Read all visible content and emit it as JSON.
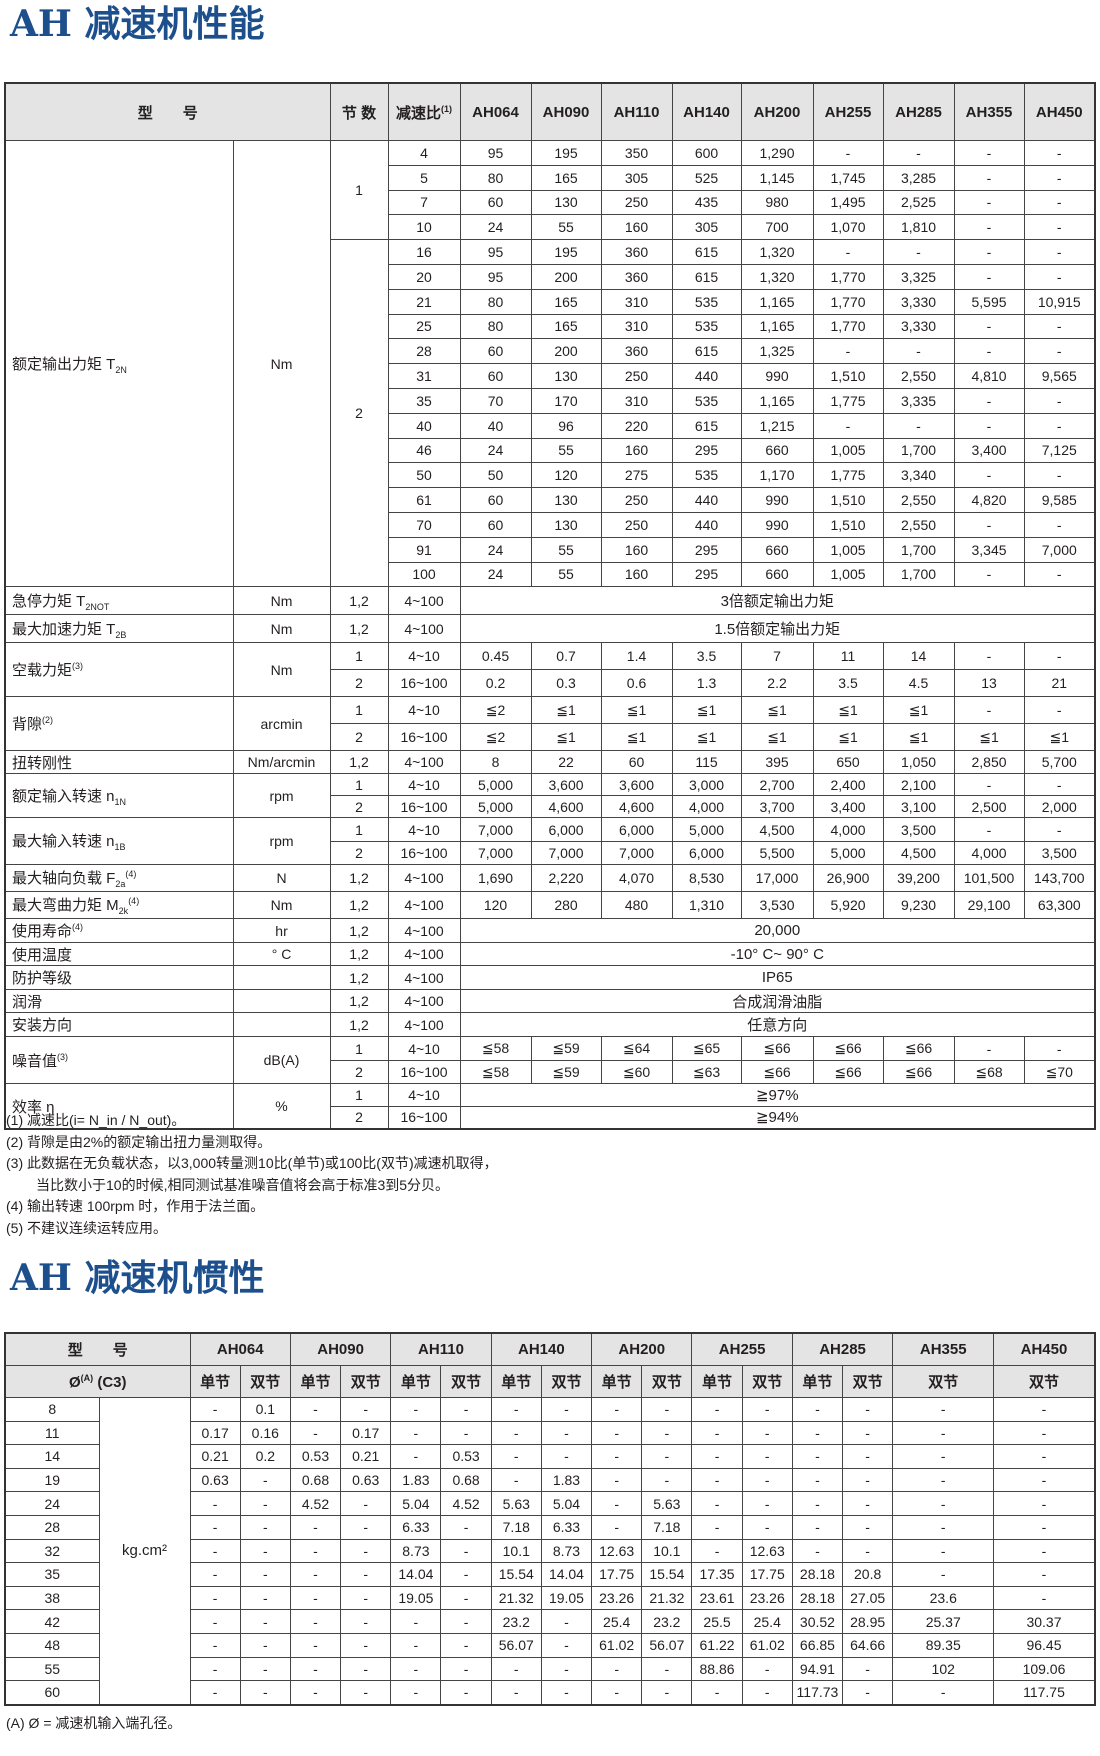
{
  "perf": {
    "title": "AH 减速机性能",
    "header": {
      "model": "型　　号",
      "stage": "节 数",
      "ratio": "减速比",
      "ratio_note": "(1)",
      "models": [
        "AH064",
        "AH090",
        "AH110",
        "AH140",
        "AH200",
        "AH255",
        "AH285",
        "AH355",
        "AH450"
      ]
    },
    "groups": [
      {
        "label": "额定输出力矩 T",
        "sub": "2N",
        "sup": "",
        "unit": "Nm",
        "lines": [
          {
            "stage": "1",
            "ratio": "4",
            "values": [
              "95",
              "195",
              "350",
              "600",
              "1,290",
              "-",
              "-",
              "-",
              "-"
            ]
          },
          {
            "stage": "1",
            "ratio": "5",
            "values": [
              "80",
              "165",
              "305",
              "525",
              "1,145",
              "1,745",
              "3,285",
              "-",
              "-"
            ]
          },
          {
            "stage": "1",
            "ratio": "7",
            "values": [
              "60",
              "130",
              "250",
              "435",
              "980",
              "1,495",
              "2,525",
              "-",
              "-"
            ]
          },
          {
            "stage": "1",
            "ratio": "10",
            "values": [
              "24",
              "55",
              "160",
              "305",
              "700",
              "1,070",
              "1,810",
              "-",
              "-"
            ]
          },
          {
            "stage": "2",
            "ratio": "16",
            "values": [
              "95",
              "195",
              "360",
              "615",
              "1,320",
              "-",
              "-",
              "-",
              "-"
            ]
          },
          {
            "stage": "2",
            "ratio": "20",
            "values": [
              "95",
              "200",
              "360",
              "615",
              "1,320",
              "1,770",
              "3,325",
              "-",
              "-"
            ]
          },
          {
            "stage": "2",
            "ratio": "21",
            "values": [
              "80",
              "165",
              "310",
              "535",
              "1,165",
              "1,770",
              "3,330",
              "5,595",
              "10,915"
            ]
          },
          {
            "stage": "2",
            "ratio": "25",
            "values": [
              "80",
              "165",
              "310",
              "535",
              "1,165",
              "1,770",
              "3,330",
              "-",
              "-"
            ]
          },
          {
            "stage": "2",
            "ratio": "28",
            "values": [
              "60",
              "200",
              "360",
              "615",
              "1,325",
              "-",
              "-",
              "-",
              "-"
            ]
          },
          {
            "stage": "2",
            "ratio": "31",
            "values": [
              "60",
              "130",
              "250",
              "440",
              "990",
              "1,510",
              "2,550",
              "4,810",
              "9,565"
            ]
          },
          {
            "stage": "2",
            "ratio": "35",
            "values": [
              "70",
              "170",
              "310",
              "535",
              "1,165",
              "1,775",
              "3,335",
              "-",
              "-"
            ]
          },
          {
            "stage": "2",
            "ratio": "40",
            "values": [
              "40",
              "96",
              "220",
              "615",
              "1,215",
              "-",
              "-",
              "-",
              "-"
            ]
          },
          {
            "stage": "2",
            "ratio": "46",
            "values": [
              "24",
              "55",
              "160",
              "295",
              "660",
              "1,005",
              "1,700",
              "3,400",
              "7,125"
            ]
          },
          {
            "stage": "2",
            "ratio": "50",
            "values": [
              "50",
              "120",
              "275",
              "535",
              "1,170",
              "1,775",
              "3,340",
              "-",
              "-"
            ]
          },
          {
            "stage": "2",
            "ratio": "61",
            "values": [
              "60",
              "130",
              "250",
              "440",
              "990",
              "1,510",
              "2,550",
              "4,820",
              "9,585"
            ]
          },
          {
            "stage": "2",
            "ratio": "70",
            "values": [
              "60",
              "130",
              "250",
              "440",
              "990",
              "1,510",
              "2,550",
              "-",
              "-"
            ]
          },
          {
            "stage": "2",
            "ratio": "91",
            "values": [
              "24",
              "55",
              "160",
              "295",
              "660",
              "1,005",
              "1,700",
              "3,345",
              "7,000"
            ]
          },
          {
            "stage": "2",
            "ratio": "100",
            "values": [
              "24",
              "55",
              "160",
              "295",
              "660",
              "1,005",
              "1,700",
              "-",
              "-"
            ]
          }
        ]
      },
      {
        "label": "急停力矩 T",
        "sub": "2NOT",
        "sup": "",
        "unit": "Nm",
        "lines": [
          {
            "stage": "1,2",
            "ratio": "4~100",
            "span": "3倍额定输出力矩"
          }
        ]
      },
      {
        "label": "最大加速力矩 T",
        "sub": "2B",
        "sup": "",
        "unit": "Nm",
        "lines": [
          {
            "stage": "1,2",
            "ratio": "4~100",
            "span": "1.5倍额定输出力矩"
          }
        ]
      },
      {
        "label": "空载力矩",
        "sub": "",
        "sup": "(3)",
        "unit": "Nm",
        "lines": [
          {
            "stage": "1",
            "ratio": "4~10",
            "values": [
              "0.45",
              "0.7",
              "1.4",
              "3.5",
              "7",
              "11",
              "14",
              "-",
              "-"
            ]
          },
          {
            "stage": "2",
            "ratio": "16~100",
            "values": [
              "0.2",
              "0.3",
              "0.6",
              "1.3",
              "2.2",
              "3.5",
              "4.5",
              "13",
              "21"
            ]
          }
        ]
      },
      {
        "label": "背隙",
        "sub": "",
        "sup": "(2)",
        "unit": "arcmin",
        "lines": [
          {
            "stage": "1",
            "ratio": "4~10",
            "values": [
              "≦2",
              "≦1",
              "≦1",
              "≦1",
              "≦1",
              "≦1",
              "≦1",
              "-",
              "-"
            ]
          },
          {
            "stage": "2",
            "ratio": "16~100",
            "values": [
              "≦2",
              "≦1",
              "≦1",
              "≦1",
              "≦1",
              "≦1",
              "≦1",
              "≦1",
              "≦1"
            ]
          }
        ]
      },
      {
        "label": "扭转刚性",
        "sub": "",
        "sup": "",
        "unit": "Nm/arcmin",
        "lines": [
          {
            "stage": "1,2",
            "ratio": "4~100",
            "values": [
              "8",
              "22",
              "60",
              "115",
              "395",
              "650",
              "1,050",
              "2,850",
              "5,700"
            ]
          }
        ]
      },
      {
        "label": "额定输入转速 n",
        "sub": "1N",
        "sup": "",
        "unit": "rpm",
        "lines": [
          {
            "stage": "1",
            "ratio": "4~10",
            "values": [
              "5,000",
              "3,600",
              "3,600",
              "3,000",
              "2,700",
              "2,400",
              "2,100",
              "-",
              "-"
            ]
          },
          {
            "stage": "2",
            "ratio": "16~100",
            "values": [
              "5,000",
              "4,600",
              "4,600",
              "4,000",
              "3,700",
              "3,400",
              "3,100",
              "2,500",
              "2,000"
            ]
          }
        ]
      },
      {
        "label": "最大输入转速 n",
        "sub": "1B",
        "sup": "",
        "unit": "rpm",
        "lines": [
          {
            "stage": "1",
            "ratio": "4~10",
            "values": [
              "7,000",
              "6,000",
              "6,000",
              "5,000",
              "4,500",
              "4,000",
              "3,500",
              "-",
              "-"
            ]
          },
          {
            "stage": "2",
            "ratio": "16~100",
            "values": [
              "7,000",
              "7,000",
              "7,000",
              "6,000",
              "5,500",
              "5,000",
              "4,500",
              "4,000",
              "3,500"
            ]
          }
        ]
      },
      {
        "label": "最大轴向负载 F",
        "sub": "2a",
        "sup": "(4)",
        "unit": "N",
        "lines": [
          {
            "stage": "1,2",
            "ratio": "4~100",
            "values": [
              "1,690",
              "2,220",
              "4,070",
              "8,530",
              "17,000",
              "26,900",
              "39,200",
              "101,500",
              "143,700"
            ]
          }
        ]
      },
      {
        "label": "最大弯曲力矩 M",
        "sub": "2k",
        "sup": "(4)",
        "unit": "Nm",
        "lines": [
          {
            "stage": "1,2",
            "ratio": "4~100",
            "values": [
              "120",
              "280",
              "480",
              "1,310",
              "3,530",
              "5,920",
              "9,230",
              "29,100",
              "63,300"
            ]
          }
        ]
      },
      {
        "label": "使用寿命",
        "sub": "",
        "sup": "(4)",
        "unit": "hr",
        "lines": [
          {
            "stage": "1,2",
            "ratio": "4~100",
            "span": "20,000"
          }
        ]
      },
      {
        "label": "使用温度",
        "sub": "",
        "sup": "",
        "unit": "° C",
        "lines": [
          {
            "stage": "1,2",
            "ratio": "4~100",
            "span": "-10° C~ 90° C"
          }
        ]
      },
      {
        "label": "防护等级",
        "sub": "",
        "sup": "",
        "unit": "",
        "lines": [
          {
            "stage": "1,2",
            "ratio": "4~100",
            "span": "IP65"
          }
        ]
      },
      {
        "label": "润滑",
        "sub": "",
        "sup": "",
        "unit": "",
        "lines": [
          {
            "stage": "1,2",
            "ratio": "4~100",
            "span": "合成润滑油脂"
          }
        ]
      },
      {
        "label": "安装方向",
        "sub": "",
        "sup": "",
        "unit": "",
        "lines": [
          {
            "stage": "1,2",
            "ratio": "4~100",
            "span": "任意方向"
          }
        ]
      },
      {
        "label": "噪音值",
        "sub": "",
        "sup": "(3)",
        "unit": "dB(A)",
        "lines": [
          {
            "stage": "1",
            "ratio": "4~10",
            "values": [
              "≦58",
              "≦59",
              "≦64",
              "≦65",
              "≦66",
              "≦66",
              "≦66",
              "-",
              "-"
            ]
          },
          {
            "stage": "2",
            "ratio": "16~100",
            "values": [
              "≦58",
              "≦59",
              "≦60",
              "≦63",
              "≦66",
              "≦66",
              "≦66",
              "≦68",
              "≦70"
            ]
          }
        ]
      },
      {
        "label": "效率 η",
        "sub": "",
        "sup": "",
        "unit": "%",
        "lines": [
          {
            "stage": "1",
            "ratio": "4~10",
            "span": "≧97%"
          },
          {
            "stage": "2",
            "ratio": "16~100",
            "span": "≧94%"
          }
        ]
      }
    ],
    "notes": [
      "(1) 减速比(i= N_in / N_out)。",
      "(2) 背隙是由2%的额定输出扭力量测取得。",
      "(3) 此数据在无负载状态，以3,000转量测10比(单节)或100比(双节)减速机取得，",
      "当比数小于10的时候,相同测试基准噪音值将会高于标准3到5分贝。",
      "(4) 输出转速 100rpm 时，作用于法兰面。",
      "(5) 不建议连续运转应用。"
    ]
  },
  "inertia": {
    "title": "AH 减速机惯性",
    "model_label": "型　　号",
    "bore_label": "Ø",
    "bore_sup": "(A)",
    "bore_suffix": " (C3)",
    "unit": "kg.cm²",
    "models": [
      {
        "name": "AH064",
        "stages": [
          "单节",
          "双节"
        ]
      },
      {
        "name": "AH090",
        "stages": [
          "单节",
          "双节"
        ]
      },
      {
        "name": "AH110",
        "stages": [
          "单节",
          "双节"
        ]
      },
      {
        "name": "AH140",
        "stages": [
          "单节",
          "双节"
        ]
      },
      {
        "name": "AH200",
        "stages": [
          "单节",
          "双节"
        ]
      },
      {
        "name": "AH255",
        "stages": [
          "单节",
          "双节"
        ]
      },
      {
        "name": "AH285",
        "stages": [
          "单节",
          "双节"
        ]
      },
      {
        "name": "AH355",
        "stages": [
          "双节"
        ]
      },
      {
        "name": "AH450",
        "stages": [
          "双节"
        ]
      }
    ],
    "rows": [
      {
        "bore": "8",
        "values": [
          "-",
          "0.1",
          "-",
          "-",
          "-",
          "-",
          "-",
          "-",
          "-",
          "-",
          "-",
          "-",
          "-",
          "-",
          "-",
          "-"
        ]
      },
      {
        "bore": "11",
        "values": [
          "0.17",
          "0.16",
          "-",
          "0.17",
          "-",
          "-",
          "-",
          "-",
          "-",
          "-",
          "-",
          "-",
          "-",
          "-",
          "-",
          "-"
        ]
      },
      {
        "bore": "14",
        "values": [
          "0.21",
          "0.2",
          "0.53",
          "0.21",
          "-",
          "0.53",
          "-",
          "-",
          "-",
          "-",
          "-",
          "-",
          "-",
          "-",
          "-",
          "-"
        ]
      },
      {
        "bore": "19",
        "values": [
          "0.63",
          "-",
          "0.68",
          "0.63",
          "1.83",
          "0.68",
          "-",
          "1.83",
          "-",
          "-",
          "-",
          "-",
          "-",
          "-",
          "-",
          "-"
        ]
      },
      {
        "bore": "24",
        "values": [
          "-",
          "-",
          "4.52",
          "-",
          "5.04",
          "4.52",
          "5.63",
          "5.04",
          "-",
          "5.63",
          "-",
          "-",
          "-",
          "-",
          "-",
          "-"
        ]
      },
      {
        "bore": "28",
        "values": [
          "-",
          "-",
          "-",
          "-",
          "6.33",
          "-",
          "7.18",
          "6.33",
          "-",
          "7.18",
          "-",
          "-",
          "-",
          "-",
          "-",
          "-"
        ]
      },
      {
        "bore": "32",
        "values": [
          "-",
          "-",
          "-",
          "-",
          "8.73",
          "-",
          "10.1",
          "8.73",
          "12.63",
          "10.1",
          "-",
          "12.63",
          "-",
          "-",
          "-",
          "-"
        ]
      },
      {
        "bore": "35",
        "values": [
          "-",
          "-",
          "-",
          "-",
          "14.04",
          "-",
          "15.54",
          "14.04",
          "17.75",
          "15.54",
          "17.35",
          "17.75",
          "28.18",
          "20.8",
          "-",
          "-"
        ]
      },
      {
        "bore": "38",
        "values": [
          "-",
          "-",
          "-",
          "-",
          "19.05",
          "-",
          "21.32",
          "19.05",
          "23.26",
          "21.32",
          "23.61",
          "23.26",
          "28.18",
          "27.05",
          "23.6",
          "-"
        ]
      },
      {
        "bore": "42",
        "values": [
          "-",
          "-",
          "-",
          "-",
          "-",
          "-",
          "23.2",
          "-",
          "25.4",
          "23.2",
          "25.5",
          "25.4",
          "30.52",
          "28.95",
          "25.37",
          "30.37"
        ]
      },
      {
        "bore": "48",
        "values": [
          "-",
          "-",
          "-",
          "-",
          "-",
          "-",
          "56.07",
          "-",
          "61.02",
          "56.07",
          "61.22",
          "61.02",
          "66.85",
          "64.66",
          "89.35",
          "96.45"
        ]
      },
      {
        "bore": "55",
        "values": [
          "-",
          "-",
          "-",
          "-",
          "-",
          "-",
          "-",
          "-",
          "-",
          "-",
          "88.86",
          "-",
          "94.91",
          "-",
          "102",
          "109.06"
        ]
      },
      {
        "bore": "60",
        "values": [
          "-",
          "-",
          "-",
          "-",
          "-",
          "-",
          "-",
          "-",
          "-",
          "-",
          "-",
          "-",
          "117.73",
          "-",
          "-",
          "117.75"
        ]
      }
    ],
    "notes": [
      "(A) Ø = 减速机输入端孔径。"
    ]
  }
}
